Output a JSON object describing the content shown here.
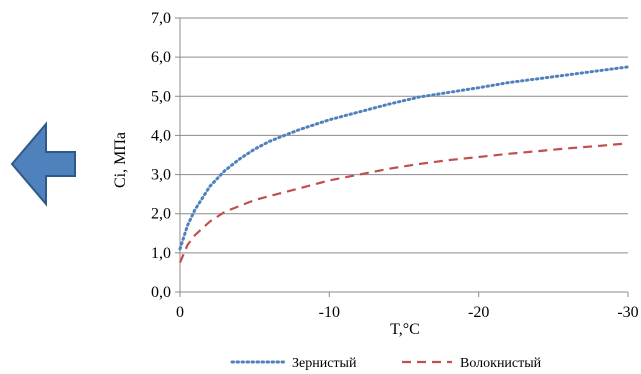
{
  "chart_data": {
    "type": "line",
    "xlabel": "T,°C",
    "ylabel": "Ci, МПа",
    "xlim": [
      0,
      -30
    ],
    "ylim": [
      0,
      7
    ],
    "x_ticks": [
      "0",
      "-10",
      "-20",
      "-30"
    ],
    "x_tick_values": [
      0,
      -10,
      -20,
      -30
    ],
    "y_ticks": [
      "0,0",
      "1,0",
      "2,0",
      "3,0",
      "4,0",
      "5,0",
      "6,0",
      "7,0"
    ],
    "y_tick_values": [
      0,
      1,
      2,
      3,
      4,
      5,
      6,
      7
    ],
    "grid": "horizontal",
    "legend_position": "bottom",
    "series": [
      {
        "name": "Зернистый",
        "color": "#4f81bd",
        "style": "dotted",
        "x": [
          0,
          -0.5,
          -1,
          -2,
          -3,
          -4,
          -5,
          -6,
          -7,
          -8,
          -10,
          -12,
          -14,
          -16,
          -18,
          -20,
          -22,
          -24,
          -26,
          -28,
          -30
        ],
        "y": [
          1.1,
          1.7,
          2.1,
          2.7,
          3.1,
          3.4,
          3.65,
          3.85,
          4.0,
          4.15,
          4.4,
          4.6,
          4.8,
          4.98,
          5.1,
          5.22,
          5.35,
          5.45,
          5.55,
          5.65,
          5.75
        ]
      },
      {
        "name": "Волокнистый",
        "color": "#c0504d",
        "style": "dashed",
        "x": [
          0,
          -0.5,
          -1,
          -2,
          -3,
          -4,
          -5,
          -6,
          -7,
          -8,
          -10,
          -12,
          -14,
          -16,
          -18,
          -20,
          -22,
          -24,
          -26,
          -28,
          -30
        ],
        "y": [
          0.75,
          1.2,
          1.45,
          1.8,
          2.05,
          2.2,
          2.35,
          2.45,
          2.55,
          2.65,
          2.85,
          3.0,
          3.15,
          3.27,
          3.37,
          3.45,
          3.53,
          3.6,
          3.67,
          3.73,
          3.8
        ]
      }
    ]
  },
  "back_arrow": {
    "icon": "left-arrow-icon",
    "fill": "#4f81bd",
    "stroke": "#2e5a8a"
  }
}
